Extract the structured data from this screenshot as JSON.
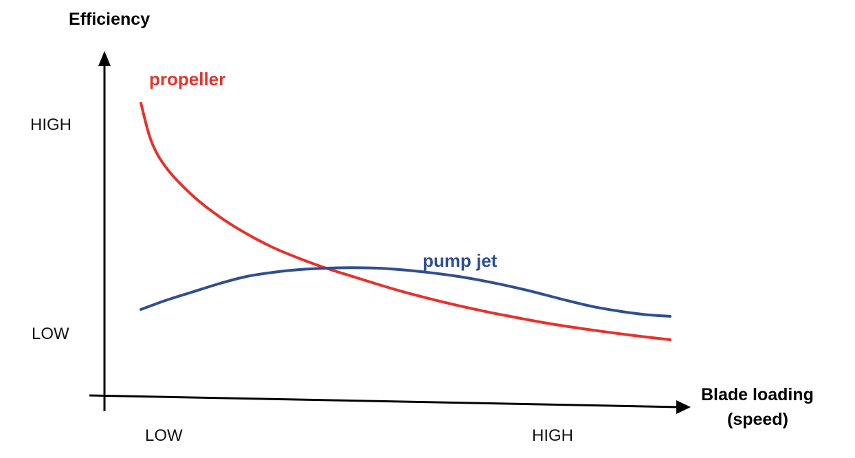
{
  "chart_data": {
    "type": "line",
    "y_axis_title": "Efficiency",
    "x_axis_title_line1": "Blade loading",
    "x_axis_title_line2": "(speed)",
    "y_ticks": [
      "HIGH",
      "LOW"
    ],
    "x_ticks": [
      "LOW",
      "HIGH"
    ],
    "x_range": [
      0,
      1
    ],
    "y_range": [
      0,
      1
    ],
    "grid": false,
    "series": [
      {
        "name": "propeller",
        "color": "#e8312a",
        "x": [
          0.0,
          0.02,
          0.05,
          0.1,
          0.15,
          0.2,
          0.25,
          0.3,
          0.35,
          0.4,
          0.45,
          0.5,
          0.55,
          0.6,
          0.65,
          0.7,
          0.75,
          0.8,
          0.85,
          0.9,
          0.95,
          1.0
        ],
        "y": [
          1.0,
          0.86,
          0.76,
          0.66,
          0.585,
          0.525,
          0.475,
          0.435,
          0.4,
          0.37,
          0.34,
          0.312,
          0.287,
          0.264,
          0.243,
          0.224,
          0.206,
          0.19,
          0.176,
          0.163,
          0.151,
          0.14
        ]
      },
      {
        "name": "pump jet",
        "color": "#2f4f93",
        "x": [
          0.0,
          0.05,
          0.1,
          0.15,
          0.2,
          0.25,
          0.3,
          0.35,
          0.4,
          0.45,
          0.5,
          0.55,
          0.6,
          0.65,
          0.7,
          0.75,
          0.8,
          0.85,
          0.9,
          0.95,
          1.0
        ],
        "y": [
          0.25,
          0.285,
          0.315,
          0.345,
          0.37,
          0.385,
          0.395,
          0.4,
          0.402,
          0.4,
          0.393,
          0.383,
          0.37,
          0.353,
          0.333,
          0.31,
          0.285,
          0.262,
          0.245,
          0.232,
          0.225
        ]
      }
    ]
  }
}
